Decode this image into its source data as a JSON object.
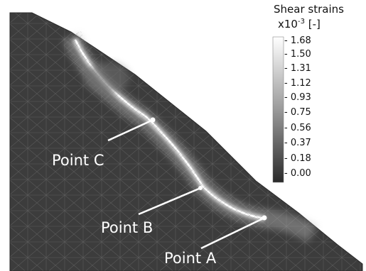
{
  "legend": {
    "title_line1": "Shear strains",
    "title_unit_base": "x10",
    "title_unit_exp": "-3",
    "title_unit_suffix": " [-]",
    "ticks": [
      "1.68",
      "1.50",
      "1.31",
      "1.12",
      "0.93",
      "0.75",
      "0.56",
      "0.37",
      "0.18",
      "0.00"
    ]
  },
  "points": [
    {
      "label": "Point C"
    },
    {
      "label": "Point B"
    },
    {
      "label": "Point A"
    }
  ],
  "colors": {
    "mesh_fill": "#3c3c3c",
    "mesh_line": "#5a5a5a",
    "band": "#ffffff",
    "annotation": "#ffffff"
  }
}
